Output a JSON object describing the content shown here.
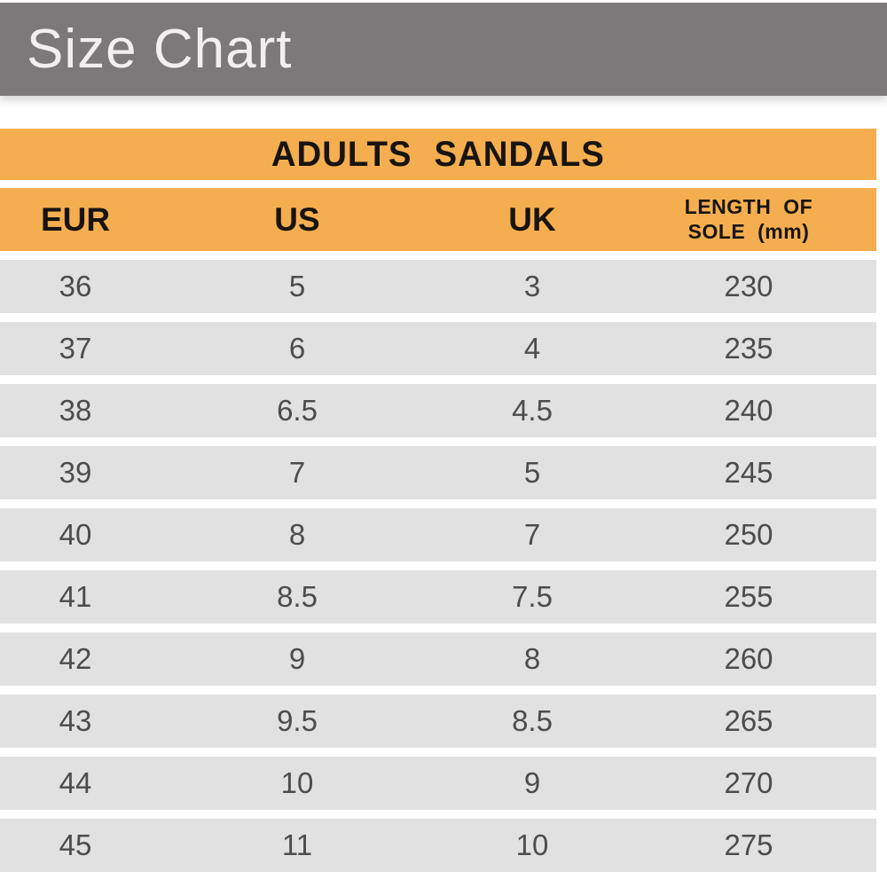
{
  "header": {
    "title": "Size Chart"
  },
  "table": {
    "title": "ADULTS SANDALS",
    "columns": [
      "EUR",
      "US",
      "UK",
      "LENGTH OF\nSOLE  (mm)"
    ],
    "rows": [
      [
        "36",
        "5",
        "3",
        "230"
      ],
      [
        "37",
        "6",
        "4",
        "235"
      ],
      [
        "38",
        "6.5",
        "4.5",
        "240"
      ],
      [
        "39",
        "7",
        "5",
        "245"
      ],
      [
        "40",
        "8",
        "7",
        "250"
      ],
      [
        "41",
        "8.5",
        "7.5",
        "255"
      ],
      [
        "42",
        "9",
        "8",
        "260"
      ],
      [
        "43",
        "9.5",
        "8.5",
        "265"
      ],
      [
        "44",
        "10",
        "9",
        "270"
      ],
      [
        "45",
        "11",
        "10",
        "275"
      ]
    ]
  },
  "colors": {
    "banner_gray": "#7b7979",
    "accent_orange": "#f5ae4f",
    "row_gray": "#e2e1e1",
    "header_text": "#181411",
    "data_text": "#4d4b4b",
    "title_text": "#f1efef"
  },
  "chart_data": {
    "type": "table",
    "title": "ADULTS SANDALS",
    "columns": [
      "EUR",
      "US",
      "UK",
      "LENGTH OF SOLE (mm)"
    ],
    "rows": [
      [
        36,
        5,
        3,
        230
      ],
      [
        37,
        6,
        4,
        235
      ],
      [
        38,
        6.5,
        4.5,
        240
      ],
      [
        39,
        7,
        5,
        245
      ],
      [
        40,
        8,
        7,
        250
      ],
      [
        41,
        8.5,
        7.5,
        255
      ],
      [
        42,
        9,
        8,
        260
      ],
      [
        43,
        9.5,
        8.5,
        265
      ],
      [
        44,
        10,
        9,
        270
      ],
      [
        45,
        11,
        10,
        275
      ]
    ]
  }
}
